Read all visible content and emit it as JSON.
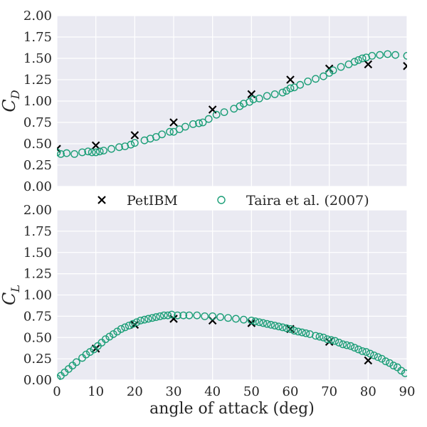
{
  "colors": {
    "petibm": "#000000",
    "taira": "#1b9e77",
    "plot_background": "#eaeaf2",
    "grid": "#ffffff"
  },
  "legend": {
    "petibm": "PetIBM",
    "taira": "Taira et al. (2007)"
  },
  "chart_data": [
    {
      "type": "scatter",
      "panel": "top",
      "ylabel_main": "C",
      "ylabel_sub": "D",
      "xlabel": "",
      "xlim": [
        0,
        90
      ],
      "ylim": [
        0,
        2
      ],
      "grid": true,
      "legend_position": "bottom-center",
      "x_ticks": [
        "0",
        "10",
        "20",
        "30",
        "40",
        "50",
        "60",
        "70",
        "80",
        "90"
      ],
      "y_ticks": [
        "0.00",
        "0.25",
        "0.50",
        "0.75",
        "1.00",
        "1.25",
        "1.50",
        "1.75",
        "2.00"
      ],
      "series": [
        {
          "name": "PetIBM",
          "marker": "x",
          "x": [
            0,
            10,
            20,
            30,
            40,
            50,
            60,
            70,
            80,
            90
          ],
          "y": [
            0.44,
            0.48,
            0.6,
            0.75,
            0.9,
            1.08,
            1.25,
            1.38,
            1.43,
            1.41
          ]
        },
        {
          "name": "Taira et al. (2007)",
          "marker": "o",
          "x": [
            0,
            1,
            2.5,
            4.5,
            6.5,
            8,
            9,
            10,
            11,
            12,
            14,
            16,
            17.5,
            19,
            20,
            22.5,
            24,
            25.5,
            27,
            29,
            30,
            31.5,
            33,
            35,
            36.5,
            37.5,
            39,
            41,
            43,
            45.5,
            47,
            48,
            49.5,
            50.5,
            52,
            54,
            56,
            58,
            59,
            60,
            61,
            62.5,
            64.5,
            66.5,
            68.5,
            70,
            71,
            73,
            75,
            76.5,
            77.5,
            78.5,
            79.5,
            81,
            83,
            85,
            87,
            90
          ],
          "y": [
            0.4,
            0.38,
            0.39,
            0.38,
            0.4,
            0.41,
            0.4,
            0.4,
            0.41,
            0.42,
            0.44,
            0.46,
            0.47,
            0.49,
            0.51,
            0.54,
            0.56,
            0.58,
            0.61,
            0.64,
            0.64,
            0.67,
            0.7,
            0.73,
            0.74,
            0.75,
            0.79,
            0.84,
            0.87,
            0.91,
            0.94,
            0.97,
            0.99,
            1.02,
            1.03,
            1.06,
            1.08,
            1.1,
            1.12,
            1.15,
            1.16,
            1.19,
            1.23,
            1.26,
            1.29,
            1.33,
            1.36,
            1.4,
            1.43,
            1.46,
            1.48,
            1.5,
            1.51,
            1.53,
            1.54,
            1.55,
            1.54,
            1.53
          ]
        }
      ]
    },
    {
      "type": "scatter",
      "panel": "bottom",
      "ylabel_main": "C",
      "ylabel_sub": "L",
      "xlabel": "angle of attack (deg)",
      "xlim": [
        0,
        90
      ],
      "ylim": [
        0,
        2
      ],
      "grid": true,
      "x_ticks": [
        "0",
        "10",
        "20",
        "30",
        "40",
        "50",
        "60",
        "70",
        "80",
        "90"
      ],
      "y_ticks": [
        "0.00",
        "0.25",
        "0.50",
        "0.75",
        "1.00",
        "1.25",
        "1.50",
        "1.75",
        "2.00"
      ],
      "series": [
        {
          "name": "PetIBM",
          "marker": "x",
          "x": [
            10,
            20,
            30,
            40,
            50,
            60,
            70,
            80
          ],
          "y": [
            0.37,
            0.65,
            0.72,
            0.7,
            0.67,
            0.6,
            0.45,
            0.23
          ]
        },
        {
          "name": "Taira et al. (2007)",
          "marker": "o",
          "x": [
            0,
            1,
            2,
            3,
            4,
            5,
            6.5,
            7.5,
            8.5,
            9.5,
            10.5,
            11.5,
            12.5,
            13.5,
            14.5,
            15.5,
            16.5,
            17.5,
            18.5,
            19.5,
            20.5,
            21.5,
            22.5,
            23.5,
            24.5,
            25.5,
            26.5,
            27.5,
            28.5,
            29.5,
            31,
            32.5,
            34,
            36,
            38,
            40,
            42,
            44,
            46,
            48,
            50,
            51,
            52,
            53,
            54,
            55,
            56,
            57,
            58,
            59,
            60,
            61,
            62,
            63,
            64,
            65,
            66.5,
            67.5,
            68.5,
            69.5,
            70.5,
            71.5,
            72.5,
            73.5,
            74.5,
            75.5,
            76.5,
            77.5,
            78.5,
            79.5,
            80.5,
            81.5,
            82.5,
            83.5,
            84.5,
            85.5,
            86.5,
            87.5,
            88.5,
            89.5
          ],
          "y": [
            0.02,
            0.05,
            0.09,
            0.13,
            0.17,
            0.21,
            0.26,
            0.3,
            0.33,
            0.36,
            0.4,
            0.44,
            0.48,
            0.51,
            0.54,
            0.57,
            0.6,
            0.62,
            0.64,
            0.66,
            0.68,
            0.7,
            0.71,
            0.72,
            0.73,
            0.74,
            0.75,
            0.76,
            0.76,
            0.77,
            0.76,
            0.76,
            0.76,
            0.76,
            0.75,
            0.75,
            0.74,
            0.73,
            0.72,
            0.71,
            0.7,
            0.69,
            0.68,
            0.67,
            0.66,
            0.65,
            0.64,
            0.63,
            0.62,
            0.61,
            0.6,
            0.58,
            0.57,
            0.56,
            0.55,
            0.54,
            0.52,
            0.51,
            0.5,
            0.48,
            0.47,
            0.46,
            0.44,
            0.42,
            0.41,
            0.4,
            0.38,
            0.36,
            0.34,
            0.33,
            0.31,
            0.29,
            0.27,
            0.25,
            0.22,
            0.2,
            0.17,
            0.15,
            0.11,
            0.08
          ]
        }
      ]
    }
  ]
}
